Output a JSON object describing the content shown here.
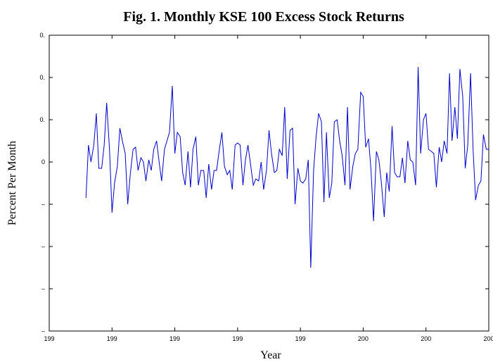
{
  "chart_data": {
    "type": "line",
    "title": "Fig. 1. Monthly KSE 100 Excess Stock Returns",
    "xlabel": "Year",
    "ylabel": "Percent Per Month",
    "xlim": [
      1990,
      2004
    ],
    "ylim": [
      -0.4,
      0.3
    ],
    "xticks": [
      {
        "value": 1990,
        "label": "199"
      },
      {
        "value": 1992,
        "label": "199"
      },
      {
        "value": 1994,
        "label": "199"
      },
      {
        "value": 1996,
        "label": "199"
      },
      {
        "value": 1998,
        "label": "199"
      },
      {
        "value": 2000,
        "label": "200"
      },
      {
        "value": 2002,
        "label": "200"
      },
      {
        "value": 2004,
        "label": "200"
      }
    ],
    "yticks": [
      {
        "value": 0.3,
        "label": "0."
      },
      {
        "value": 0.2,
        "label": "0."
      },
      {
        "value": 0.1,
        "label": "0."
      },
      0,
      {
        "value": -0.1,
        "label": "–"
      },
      {
        "value": -0.2,
        "label": "–"
      },
      {
        "value": -0.3,
        "label": "–"
      },
      {
        "value": -0.4,
        "label": "–"
      }
    ],
    "x": [
      1991.17,
      1991.25,
      1991.33,
      1991.42,
      1991.5,
      1991.58,
      1991.67,
      1991.75,
      1991.83,
      1991.92,
      1992.0,
      1992.08,
      1992.17,
      1992.25,
      1992.33,
      1992.42,
      1992.5,
      1992.58,
      1992.67,
      1992.75,
      1992.83,
      1992.92,
      1993.0,
      1993.08,
      1993.17,
      1993.25,
      1993.33,
      1993.42,
      1993.5,
      1993.58,
      1993.67,
      1993.75,
      1993.83,
      1993.92,
      1994.0,
      1994.08,
      1994.17,
      1994.25,
      1994.33,
      1994.42,
      1994.5,
      1994.58,
      1994.67,
      1994.75,
      1994.83,
      1994.92,
      1995.0,
      1995.08,
      1995.17,
      1995.25,
      1995.33,
      1995.42,
      1995.5,
      1995.58,
      1995.67,
      1995.75,
      1995.83,
      1995.92,
      1996.0,
      1996.08,
      1996.17,
      1996.25,
      1996.33,
      1996.42,
      1996.5,
      1996.58,
      1996.67,
      1996.75,
      1996.83,
      1996.92,
      1997.0,
      1997.08,
      1997.17,
      1997.25,
      1997.33,
      1997.42,
      1997.5,
      1997.58,
      1997.67,
      1997.75,
      1997.83,
      1997.92,
      1998.0,
      1998.08,
      1998.17,
      1998.25,
      1998.33,
      1998.42,
      1998.5,
      1998.58,
      1998.67,
      1998.75,
      1998.83,
      1998.92,
      1999.0,
      1999.08,
      1999.17,
      1999.25,
      1999.33,
      1999.42,
      1999.5,
      1999.58,
      1999.67,
      1999.75,
      1999.83,
      1999.92,
      2000.0,
      2000.08,
      2000.17,
      2000.25,
      2000.33,
      2000.42,
      2000.5,
      2000.58,
      2000.67,
      2000.75,
      2000.83,
      2000.92,
      2001.0,
      2001.08,
      2001.17,
      2001.25,
      2001.33,
      2001.42,
      2001.5,
      2001.58,
      2001.67,
      2001.75,
      2001.83,
      2001.92,
      2002.0,
      2002.08,
      2002.17,
      2002.25,
      2002.33,
      2002.42,
      2002.5,
      2002.58,
      2002.67,
      2002.75,
      2002.83,
      2002.92,
      2003.0,
      2003.08,
      2003.17,
      2003.25,
      2003.33,
      2003.42,
      2003.5,
      2003.58,
      2003.67,
      2003.75,
      2003.83,
      2003.92,
      2004.0
    ],
    "series": [
      {
        "color": "#0000cc",
        "values": [
          -0.085,
          0.04,
          0.0,
          0.04,
          0.115,
          -0.015,
          -0.015,
          0.04,
          0.14,
          0.03,
          -0.12,
          -0.05,
          -0.01,
          0.08,
          0.05,
          0.02,
          -0.1,
          -0.03,
          0.03,
          0.035,
          -0.02,
          0.01,
          0.0,
          -0.045,
          0.005,
          -0.02,
          0.03,
          0.05,
          0.0,
          -0.045,
          0.03,
          0.05,
          0.07,
          0.18,
          0.02,
          0.07,
          0.06,
          -0.025,
          -0.055,
          0.025,
          -0.06,
          0.03,
          0.06,
          -0.055,
          -0.02,
          -0.02,
          -0.085,
          -0.005,
          -0.065,
          -0.02,
          -0.02,
          0.03,
          0.07,
          -0.01,
          -0.03,
          -0.02,
          -0.065,
          0.04,
          0.045,
          0.04,
          -0.055,
          0.005,
          0.04,
          -0.01,
          -0.055,
          -0.04,
          -0.045,
          0.0,
          -0.065,
          -0.02,
          0.075,
          0.02,
          -0.025,
          -0.02,
          0.03,
          0.015,
          0.13,
          -0.04,
          0.075,
          0.08,
          -0.1,
          -0.015,
          -0.045,
          -0.05,
          -0.04,
          0.005,
          -0.25,
          -0.02,
          0.06,
          0.115,
          0.095,
          -0.095,
          0.07,
          -0.085,
          -0.05,
          0.095,
          0.1,
          0.05,
          0.015,
          -0.055,
          0.13,
          -0.065,
          -0.01,
          0.02,
          0.03,
          0.165,
          0.155,
          0.035,
          0.055,
          -0.02,
          -0.14,
          0.025,
          0.005,
          -0.05,
          -0.13,
          -0.025,
          -0.07,
          0.085,
          -0.025,
          -0.035,
          -0.035,
          0.01,
          -0.05,
          0.05,
          0.005,
          0.0,
          -0.055,
          0.225,
          0.02,
          0.1,
          0.115,
          0.03,
          0.025,
          0.02,
          -0.06,
          0.035,
          0.0,
          0.05,
          0.02,
          0.21,
          0.05,
          0.13,
          0.055,
          0.22,
          0.155,
          -0.015,
          0.04,
          0.21,
          0.03,
          -0.09,
          -0.055,
          -0.045,
          0.065,
          0.03,
          0.03
        ]
      }
    ]
  }
}
